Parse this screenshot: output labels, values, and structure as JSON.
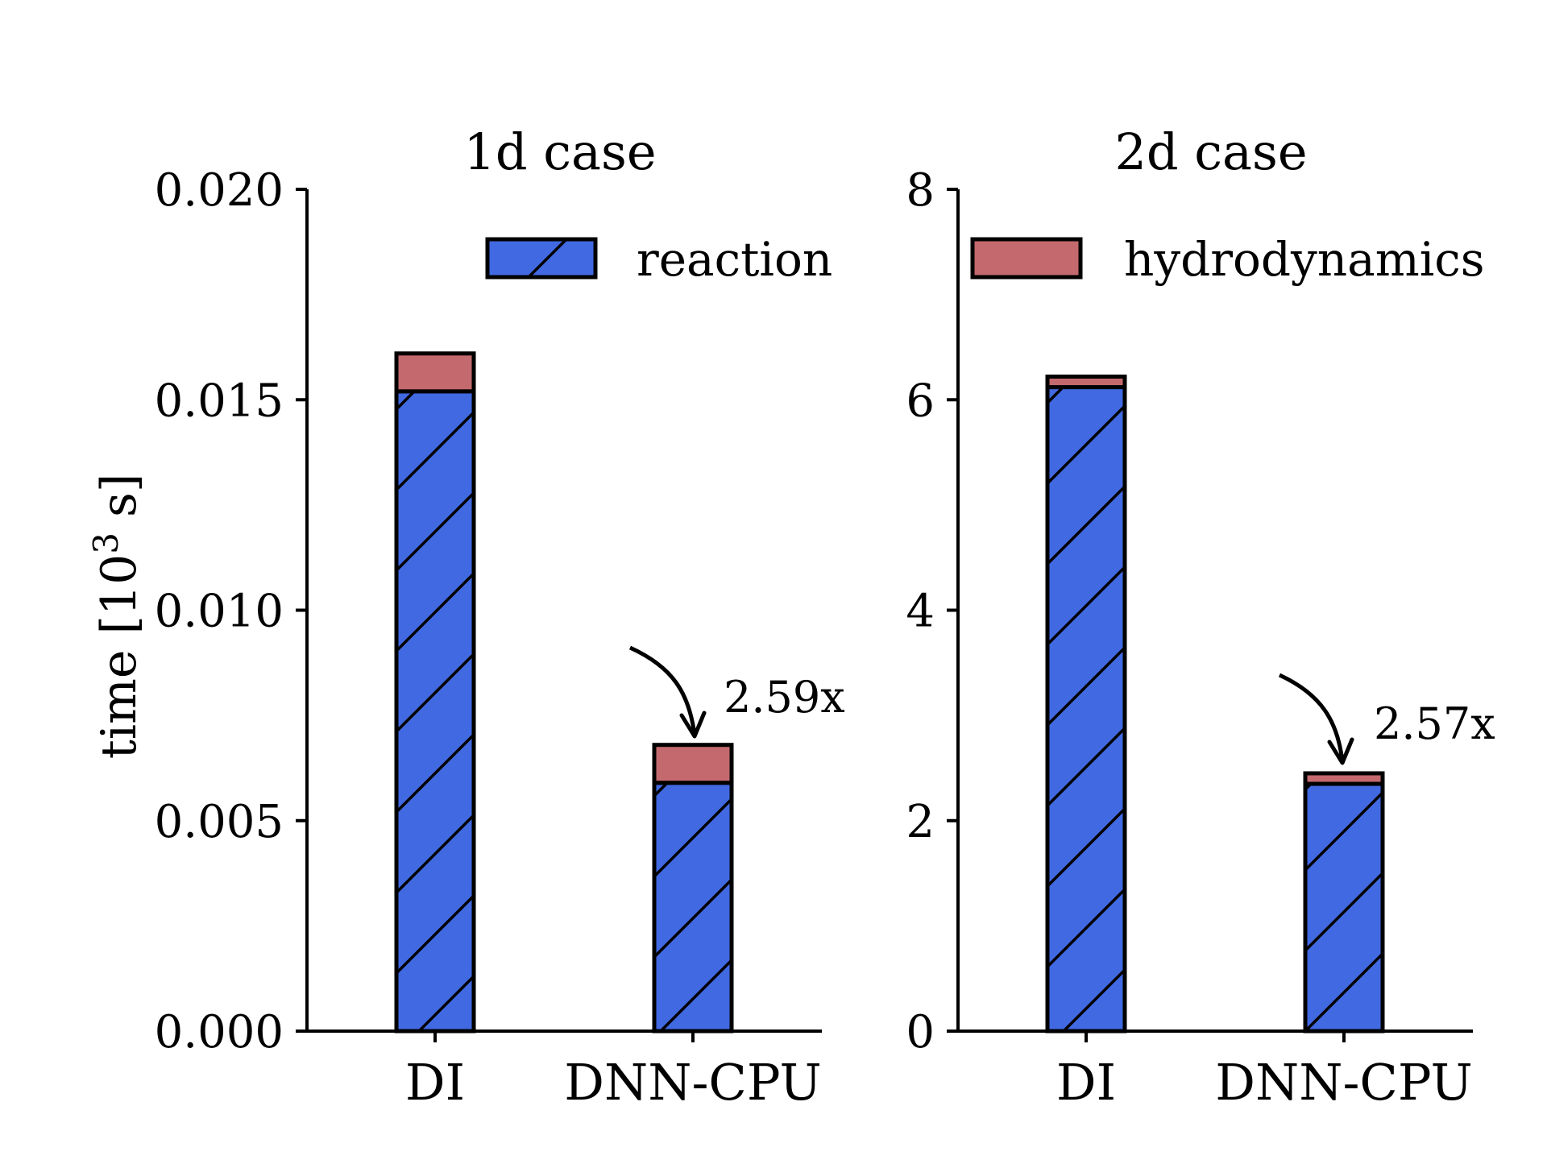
{
  "chart_data": [
    {
      "type": "bar",
      "stacked": true,
      "title": "1d case",
      "ylabel": "time [10^3 s]",
      "ylabel_parts": {
        "prefix": "time [10",
        "exponent": "3",
        "suffix": " s]"
      },
      "categories": [
        "DI",
        "DNN-CPU"
      ],
      "ylim": [
        0,
        0.02
      ],
      "yticks": [
        0,
        0.005,
        0.01,
        0.015,
        0.02
      ],
      "ytick_labels": [
        "0.000",
        "0.005",
        "0.010",
        "0.015",
        "0.020"
      ],
      "series": [
        {
          "name": "reaction",
          "values": [
            0.0152,
            0.0059
          ],
          "color": "#4169e1",
          "hatch": "/"
        },
        {
          "name": "hydrodynamics",
          "values": [
            0.0009,
            0.0009
          ],
          "color": "#c46a6e"
        }
      ],
      "legend": {
        "entries": [
          "reaction"
        ],
        "position": "top-right"
      },
      "annotation": {
        "text": "2.59x",
        "target_category": "DNN-CPU"
      }
    },
    {
      "type": "bar",
      "stacked": true,
      "title": "2d case",
      "ylabel": "",
      "categories": [
        "DI",
        "DNN-CPU"
      ],
      "ylim": [
        0,
        8
      ],
      "yticks": [
        0,
        2,
        4,
        6,
        8
      ],
      "ytick_labels": [
        "0",
        "2",
        "4",
        "6",
        "8"
      ],
      "series": [
        {
          "name": "reaction",
          "values": [
            6.12,
            2.35
          ],
          "color": "#4169e1",
          "hatch": "/"
        },
        {
          "name": "hydrodynamics",
          "values": [
            0.1,
            0.1
          ],
          "color": "#c46a6e"
        }
      ],
      "legend": {
        "entries": [
          "hydrodynamics"
        ],
        "position": "top-left"
      },
      "annotation": {
        "text": "2.57x",
        "target_category": "DNN-CPU"
      }
    }
  ]
}
